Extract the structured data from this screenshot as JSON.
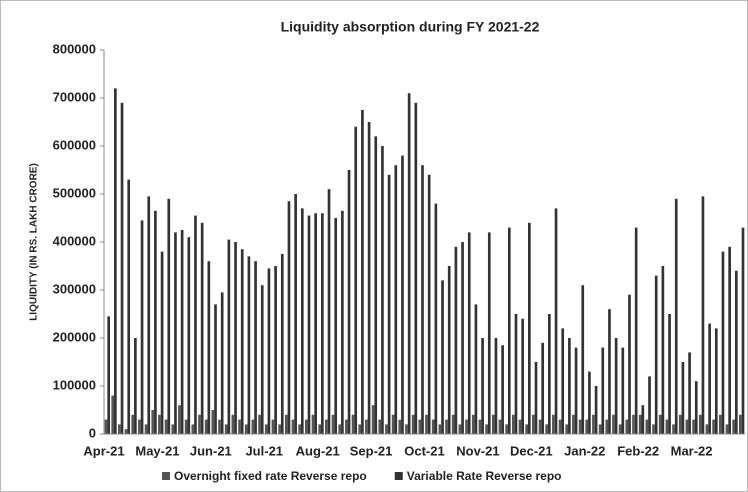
{
  "chart_data": {
    "type": "bar",
    "title": "Liquidity absorption  during FY 2021-22",
    "ylabel": "LIQUIDITY (IN RS. LAKH CRORE)",
    "categories": [
      "Apr-21",
      null,
      null,
      null,
      null,
      null,
      null,
      null,
      "May-21",
      null,
      null,
      null,
      null,
      null,
      null,
      null,
      "Jun-21",
      null,
      null,
      null,
      null,
      null,
      null,
      null,
      "Jul-21",
      null,
      null,
      null,
      null,
      null,
      null,
      null,
      "Aug-21",
      null,
      null,
      null,
      null,
      null,
      null,
      null,
      "Sep-21",
      null,
      null,
      null,
      null,
      null,
      null,
      null,
      "Oct-21",
      null,
      null,
      null,
      null,
      null,
      null,
      null,
      "Nov-21",
      null,
      null,
      null,
      null,
      null,
      null,
      null,
      "Dec-21",
      null,
      null,
      null,
      null,
      null,
      null,
      null,
      "Jan-22",
      null,
      null,
      null,
      null,
      null,
      null,
      null,
      "Feb-22",
      null,
      null,
      null,
      null,
      null,
      null,
      null,
      "Mar-22",
      null,
      null,
      null,
      null,
      null,
      null,
      null
    ],
    "series": [
      {
        "name": "Overnight fixed rate Reverse repo",
        "color": "#555555",
        "values": [
          30000,
          80000,
          20000,
          10000,
          40000,
          30000,
          20000,
          50000,
          40000,
          30000,
          20000,
          60000,
          30000,
          20000,
          40000,
          30000,
          50000,
          30000,
          20000,
          40000,
          30000,
          20000,
          30000,
          40000,
          20000,
          30000,
          20000,
          40000,
          30000,
          20000,
          30000,
          40000,
          20000,
          30000,
          40000,
          20000,
          30000,
          40000,
          20000,
          30000,
          60000,
          30000,
          20000,
          40000,
          30000,
          20000,
          40000,
          30000,
          40000,
          30000,
          20000,
          30000,
          40000,
          20000,
          30000,
          40000,
          30000,
          20000,
          40000,
          30000,
          20000,
          40000,
          30000,
          20000,
          40000,
          30000,
          20000,
          40000,
          30000,
          20000,
          40000,
          30000,
          30000,
          40000,
          20000,
          30000,
          40000,
          20000,
          30000,
          40000,
          40000,
          30000,
          20000,
          40000,
          30000,
          20000,
          40000,
          30000,
          30000,
          40000,
          20000,
          30000,
          40000,
          20000,
          30000,
          40000
        ]
      },
      {
        "name": "Variable Rate Reverse repo",
        "color": "#333333",
        "values": [
          245000,
          720000,
          690000,
          530000,
          200000,
          445000,
          495000,
          465000,
          380000,
          490000,
          420000,
          425000,
          410000,
          455000,
          440000,
          360000,
          270000,
          295000,
          405000,
          400000,
          385000,
          370000,
          360000,
          310000,
          345000,
          350000,
          375000,
          485000,
          500000,
          470000,
          455000,
          460000,
          460000,
          510000,
          450000,
          465000,
          550000,
          640000,
          675000,
          650000,
          620000,
          600000,
          540000,
          560000,
          580000,
          710000,
          690000,
          560000,
          540000,
          480000,
          320000,
          350000,
          390000,
          400000,
          420000,
          270000,
          200000,
          420000,
          200000,
          185000,
          430000,
          250000,
          240000,
          440000,
          150000,
          190000,
          250000,
          470000,
          220000,
          200000,
          180000,
          310000,
          130000,
          100000,
          180000,
          260000,
          200000,
          180000,
          290000,
          430000,
          60000,
          120000,
          330000,
          350000,
          250000,
          490000,
          150000,
          170000,
          110000,
          495000,
          230000,
          220000,
          380000,
          390000,
          340000,
          430000
        ]
      }
    ],
    "ylim": [
      0,
      800000
    ],
    "yticks": [
      0,
      100000,
      200000,
      300000,
      400000,
      500000,
      600000,
      700000,
      800000
    ],
    "legend": "bottom"
  }
}
